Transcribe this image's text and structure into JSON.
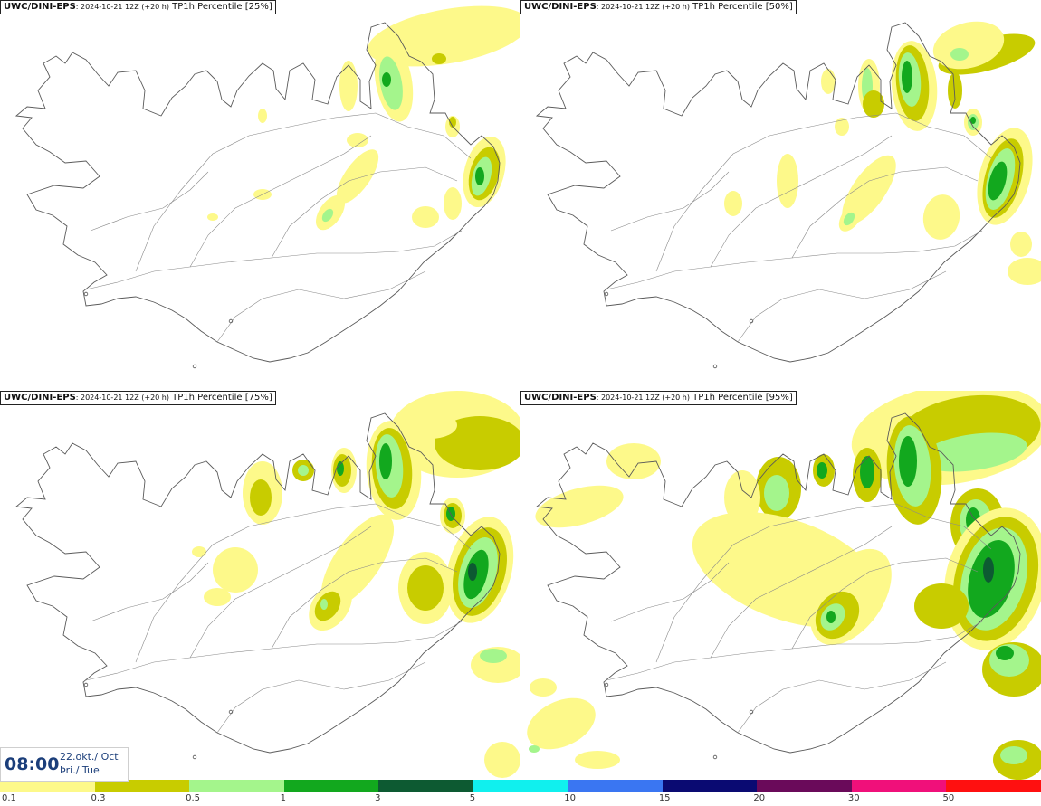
{
  "panels": [
    {
      "model": "UWC/DINI-EPS",
      "run": ": 2024-10-21 12Z (+20 h)",
      "param": " TP1h Percentile [25%]"
    },
    {
      "model": "UWC/DINI-EPS",
      "run": ": 2024-10-21 12Z (+20 h)",
      "param": " TP1h Percentile [50%]"
    },
    {
      "model": "UWC/DINI-EPS",
      "run": ": 2024-10-21 12Z (+20 h)",
      "param": " TP1h Percentile [75%]"
    },
    {
      "model": "UWC/DINI-EPS",
      "run": ": 2024-10-21 12Z (+20 h)",
      "param": " TP1h Percentile [95%]"
    }
  ],
  "valid_time": {
    "time": "08:00",
    "date": "22.okt./ Oct",
    "weekday": "Þri./ Tue"
  },
  "legend": {
    "colors": [
      "#fdf98a",
      "#c8cc00",
      "#a4f58c",
      "#12a81e",
      "#0d5a32",
      "#10f0ee",
      "#3a76f2",
      "#0a0a72",
      "#6a0a5a",
      "#f0107a",
      "#ff1010"
    ],
    "labels": [
      "0.1",
      "0.3",
      "0.5",
      "1",
      "3",
      "5",
      "10",
      "15",
      "20",
      "30",
      "50"
    ]
  }
}
